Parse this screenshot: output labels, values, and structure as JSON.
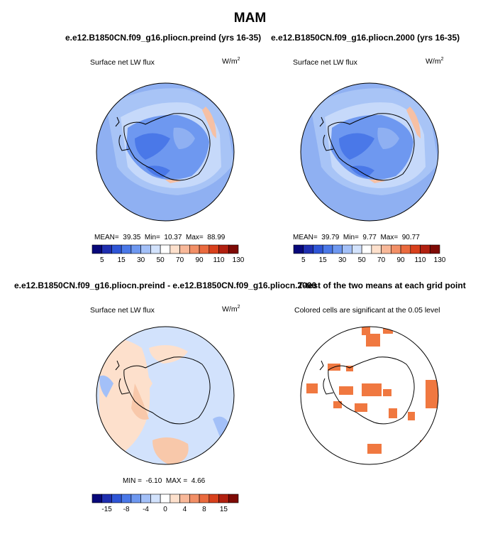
{
  "title": "MAM",
  "panels": [
    {
      "case": "e.e12.B1850CN.f09_g16.pliocn.preind (yrs 16-35)",
      "variable": "Surface net LW flux",
      "units": "W/m",
      "units_sup": "2",
      "stats": {
        "mean_label": "MEAN=",
        "mean": "39.35",
        "min_label": "Min=",
        "min": "10.37",
        "max_label": "Max=",
        "max": "88.99"
      },
      "colorbar_ticks": [
        "5",
        "15",
        "30",
        "50",
        "70",
        "90",
        "110",
        "130"
      ]
    },
    {
      "case": "e.e12.B1850CN.f09_g16.pliocn.2000 (yrs 16-35)",
      "variable": "Surface net LW flux",
      "units": "W/m",
      "units_sup": "2",
      "stats": {
        "mean_label": "MEAN=",
        "mean": "39.79",
        "min_label": "Min=",
        "min": "9.77",
        "max_label": "Max=",
        "max": "90.77"
      },
      "colorbar_ticks": [
        "5",
        "15",
        "30",
        "50",
        "70",
        "90",
        "110",
        "130"
      ]
    },
    {
      "case": "e.e12.B1850CN.f09_g16.pliocn.preind - e.e12.B1850CN.f09_g16.pliocn.2000",
      "variable": "Surface net LW flux",
      "units": "W/m",
      "units_sup": "2",
      "stats": {
        "min_label": "MIN =",
        "min": "-6.10",
        "max_label": "MAX =",
        "max": "4.66"
      },
      "colorbar_ticks": [
        "-15",
        "-8",
        "-4",
        "0",
        "4",
        "8",
        "15"
      ]
    },
    {
      "case": "T-test of the two means at each grid point",
      "subtitle": "Colored cells are significant at the 0.05 level"
    }
  ],
  "colors": {
    "abs_scale": [
      "#08087a",
      "#1f2fb0",
      "#2f55d6",
      "#4a78e8",
      "#6e98f0",
      "#a3c0f8",
      "#d2e2fc",
      "#ffffff",
      "#fde0cc",
      "#f8b899",
      "#f28f66",
      "#ea6a3e",
      "#d8401c",
      "#b12010",
      "#7e0a05"
    ],
    "diff_scale": [
      "#08087a",
      "#1f2fb0",
      "#2f55d6",
      "#4a78e8",
      "#6e98f0",
      "#a3c0f8",
      "#d2e2fc",
      "#ffffff",
      "#fde0cc",
      "#f8b899",
      "#f28f66",
      "#ea6a3e",
      "#d8401c",
      "#b12010",
      "#7e0a05"
    ],
    "significant": "#f07840"
  }
}
